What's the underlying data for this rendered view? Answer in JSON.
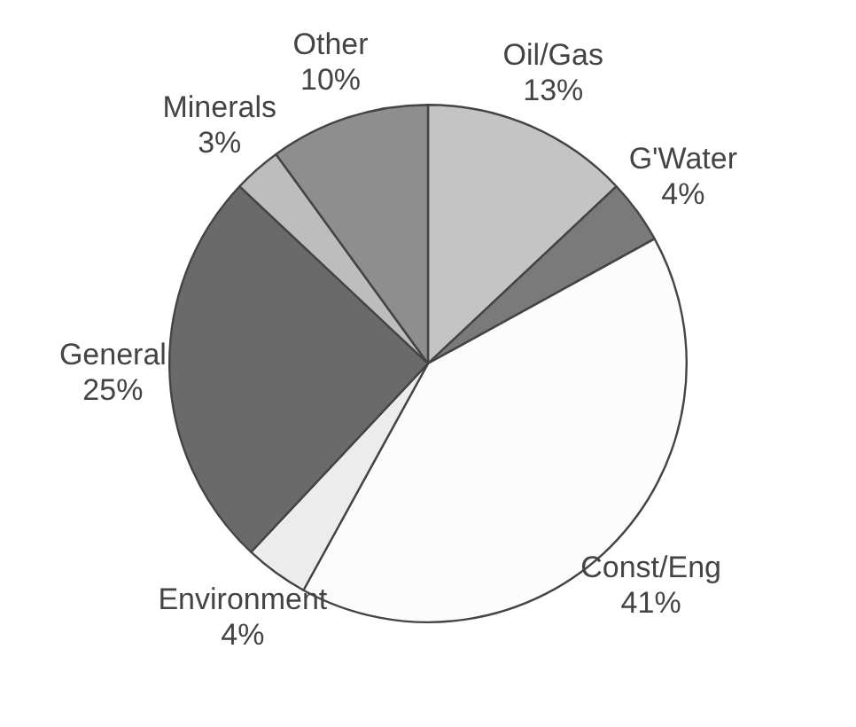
{
  "chart_data": {
    "type": "pie",
    "categories": [
      "Oil/Gas",
      "G'Water",
      "Const/Eng",
      "Environment",
      "General",
      "Minerals",
      "Other"
    ],
    "values": [
      13,
      4,
      41,
      4,
      25,
      3,
      10
    ],
    "value_labels": [
      "13%",
      "4%",
      "41%",
      "4%",
      "25%",
      "3%",
      "10%"
    ],
    "colors": [
      "#c4c4c4",
      "#7a7a7a",
      "#fcfcfc",
      "#ececec",
      "#6a6a6a",
      "#bdbdbd",
      "#8e8e8e"
    ],
    "legend": false
  }
}
